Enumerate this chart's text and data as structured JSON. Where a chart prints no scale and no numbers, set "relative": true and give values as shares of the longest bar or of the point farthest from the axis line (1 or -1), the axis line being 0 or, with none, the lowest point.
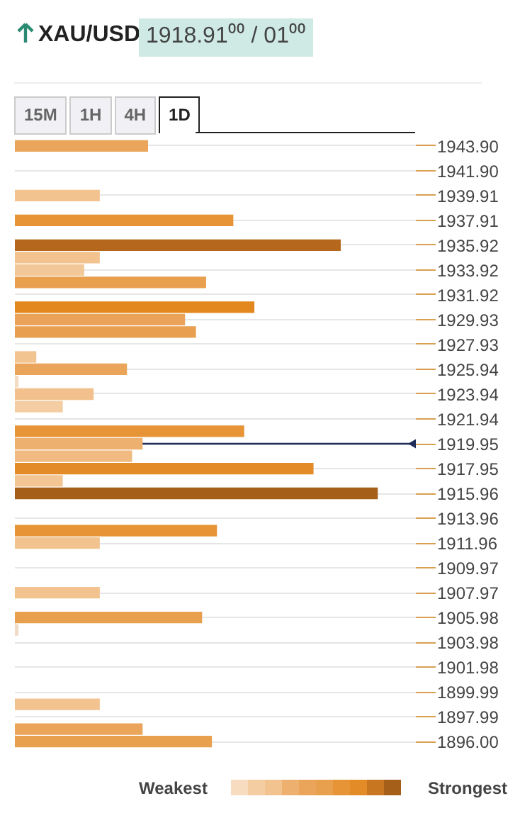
{
  "chart_data": {
    "type": "bar",
    "orientation": "horizontal",
    "relative": true,
    "title": "XAU/USD",
    "subtitle": "1918.91⁰⁰ / 01⁰⁰",
    "x": [
      1943.9,
      1939.91,
      1937.91,
      1935.92,
      1934.92,
      1933.92,
      1932.92,
      1930.93,
      1929.93,
      1928.93,
      1926.93,
      1925.94,
      1924.94,
      1923.94,
      1922.94,
      1920.95,
      1919.95,
      1918.95,
      1917.95,
      1916.96,
      1915.96,
      1912.96,
      1911.96,
      1907.97,
      1905.98,
      1904.98,
      1899.0,
      1897.0,
      1896.0
    ],
    "values": [
      0.367,
      0.234,
      0.602,
      0.898,
      0.234,
      0.191,
      0.527,
      0.66,
      0.469,
      0.499,
      0.059,
      0.309,
      0.01,
      0.217,
      0.132,
      0.632,
      0.352,
      0.323,
      0.823,
      0.132,
      1,
      0.557,
      0.234,
      0.234,
      0.516,
      0.01,
      0.234,
      0.352,
      0.543
    ],
    "colors": [
      "#eaa55a",
      "#f2c28f",
      "#e69435",
      "#b5671d",
      "#f2c28f",
      "#f3c898",
      "#e8a04f",
      "#e3871f",
      "#e9a258",
      "#e8a050",
      "#f2c490",
      "#eba55a",
      "#f3dcc0",
      "#f1c08c",
      "#f4cda2",
      "#e69435",
      "#eeb06f",
      "#f0ba80",
      "#e38b26",
      "#f3c593",
      "#a55f18",
      "#e69435",
      "#f2c28f",
      "#f2c28f",
      "#e8a04f",
      "#f0dcc6",
      "#f2c28f",
      "#eba55a",
      "#e8a04f"
    ],
    "ylim": [
      1895.5,
      1944.4
    ],
    "yticks": [
      {
        "value": 1943.9,
        "label": "1943.90"
      },
      {
        "value": 1941.9,
        "label": "1941.90"
      },
      1939.91,
      1937.91,
      1935.92,
      1933.92,
      1931.92,
      1929.93,
      1927.93,
      1925.94,
      1923.94,
      1921.94,
      {
        "value": 1919.95,
        "label": "1919.95"
      },
      1917.95,
      1915.96,
      1913.96,
      1911.96,
      1909.97,
      1907.97,
      1905.98,
      1903.98,
      1901.98,
      1899.99,
      1897.99,
      {
        "value": 1896.0,
        "label": "1896.00"
      }
    ],
    "grid": "y",
    "ref_lines": [
      {
        "axis": "y",
        "value": 1919.95,
        "color": "#1f2d5a"
      }
    ],
    "annotations": [
      "15M",
      "1H",
      "4H",
      "1D",
      "Weakest",
      "Strongest"
    ]
  }
}
